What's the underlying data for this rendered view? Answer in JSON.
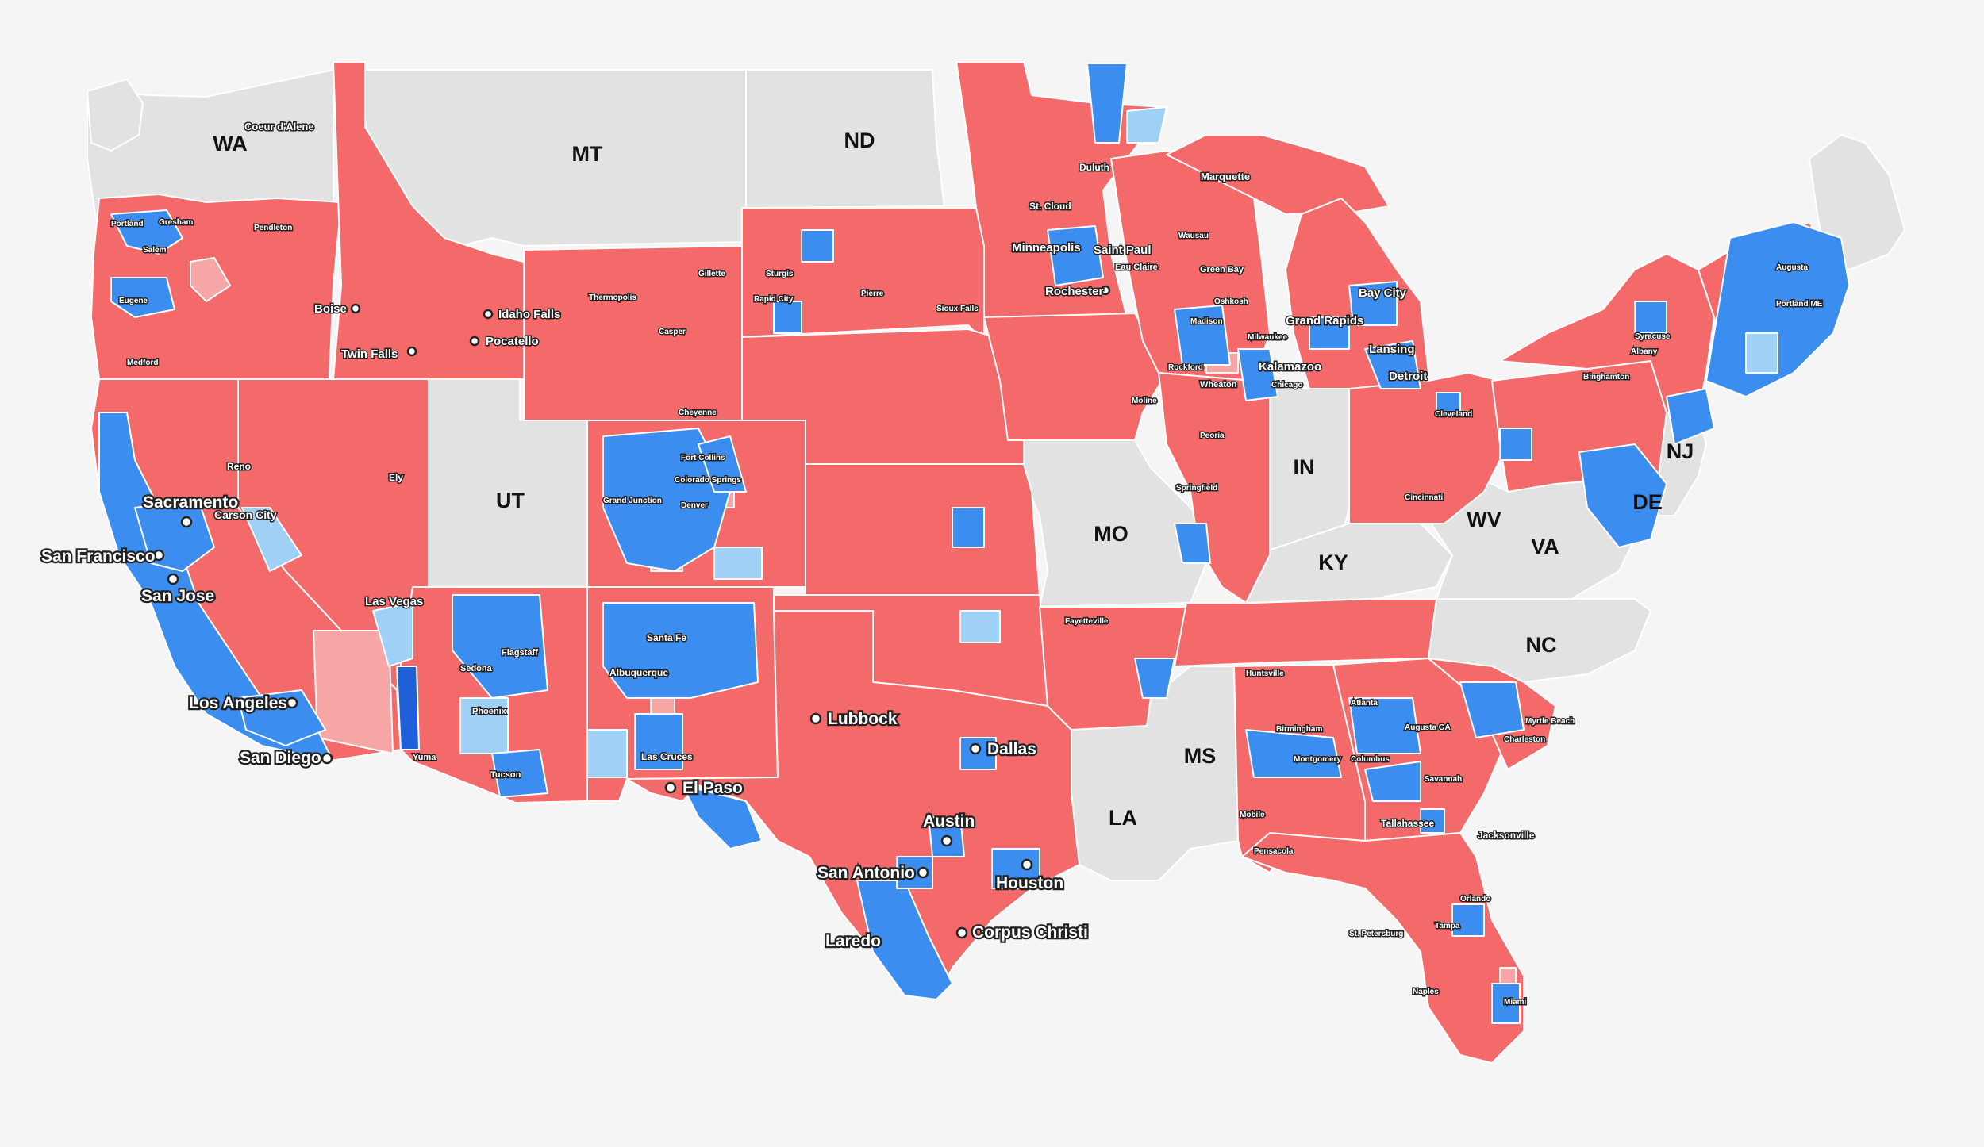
{
  "map": {
    "colors": {
      "background": "#f5f5f5",
      "no_data": "#e2e2e2",
      "strong_rep": "#f46a6a",
      "lean_rep": "#f7a6a6",
      "strong_dem": "#3b8ef0",
      "lean_dem": "#9fd0f5"
    },
    "state_labels": [
      "WA",
      "MT",
      "ND",
      "UT",
      "MO",
      "IN",
      "KY",
      "WV",
      "VA",
      "NC",
      "MS",
      "LA",
      "NJ",
      "DE"
    ],
    "major_cities": [
      "Sacramento",
      "San Francisco",
      "San Jose",
      "Los Angeles",
      "San Diego",
      "Lubbock",
      "Dallas",
      "El Paso",
      "Austin",
      "San Antonio",
      "Houston",
      "Laredo",
      "Corpus Christi",
      "Boise",
      "Idaho Falls",
      "Pocatello",
      "Twin Falls",
      "Las Vegas",
      "Minneapolis",
      "Saint Paul",
      "Rochester",
      "Grand Rapids",
      "Bay City",
      "Lansing",
      "Detroit",
      "Kalamazoo"
    ],
    "minor_cities": [
      "Coeur d'Alene",
      "Portland",
      "Gresham",
      "Salem",
      "Eugene",
      "Medford",
      "Pendleton",
      "Reno",
      "Carson City",
      "Ely",
      "Flagstaff",
      "Sedona",
      "Phoenix",
      "Yuma",
      "Tucson",
      "Santa Fe",
      "Albuquerque",
      "Las Cruces",
      "Denver",
      "Fort Collins",
      "Grand Junction",
      "Colorado Springs",
      "Cheyenne",
      "Casper",
      "Gillette",
      "Thermopolis",
      "Rapid City",
      "Sturgis",
      "Pierre",
      "Sioux Falls",
      "Duluth",
      "St. Cloud",
      "Eau Claire",
      "Marquette",
      "Wausau",
      "Green Bay",
      "Oshkosh",
      "Madison",
      "Milwaukee",
      "Rockford",
      "Wheaton",
      "Chicago",
      "Peoria",
      "Springfield",
      "Moline",
      "Fayetteville",
      "Huntsville",
      "Birmingham",
      "Montgomery",
      "Atlanta",
      "Columbus",
      "Savannah",
      "Mobile",
      "Pensacola",
      "Tallahassee",
      "Jacksonville",
      "Orlando",
      "Tampa",
      "St. Petersburg",
      "Naples",
      "Miami",
      "Syracuse",
      "Albany",
      "Binghamton",
      "Augusta",
      "Portland ME",
      "Cleveland",
      "Cincinnati",
      "Charleston",
      "Myrtle Beach",
      "Augusta GA"
    ]
  }
}
